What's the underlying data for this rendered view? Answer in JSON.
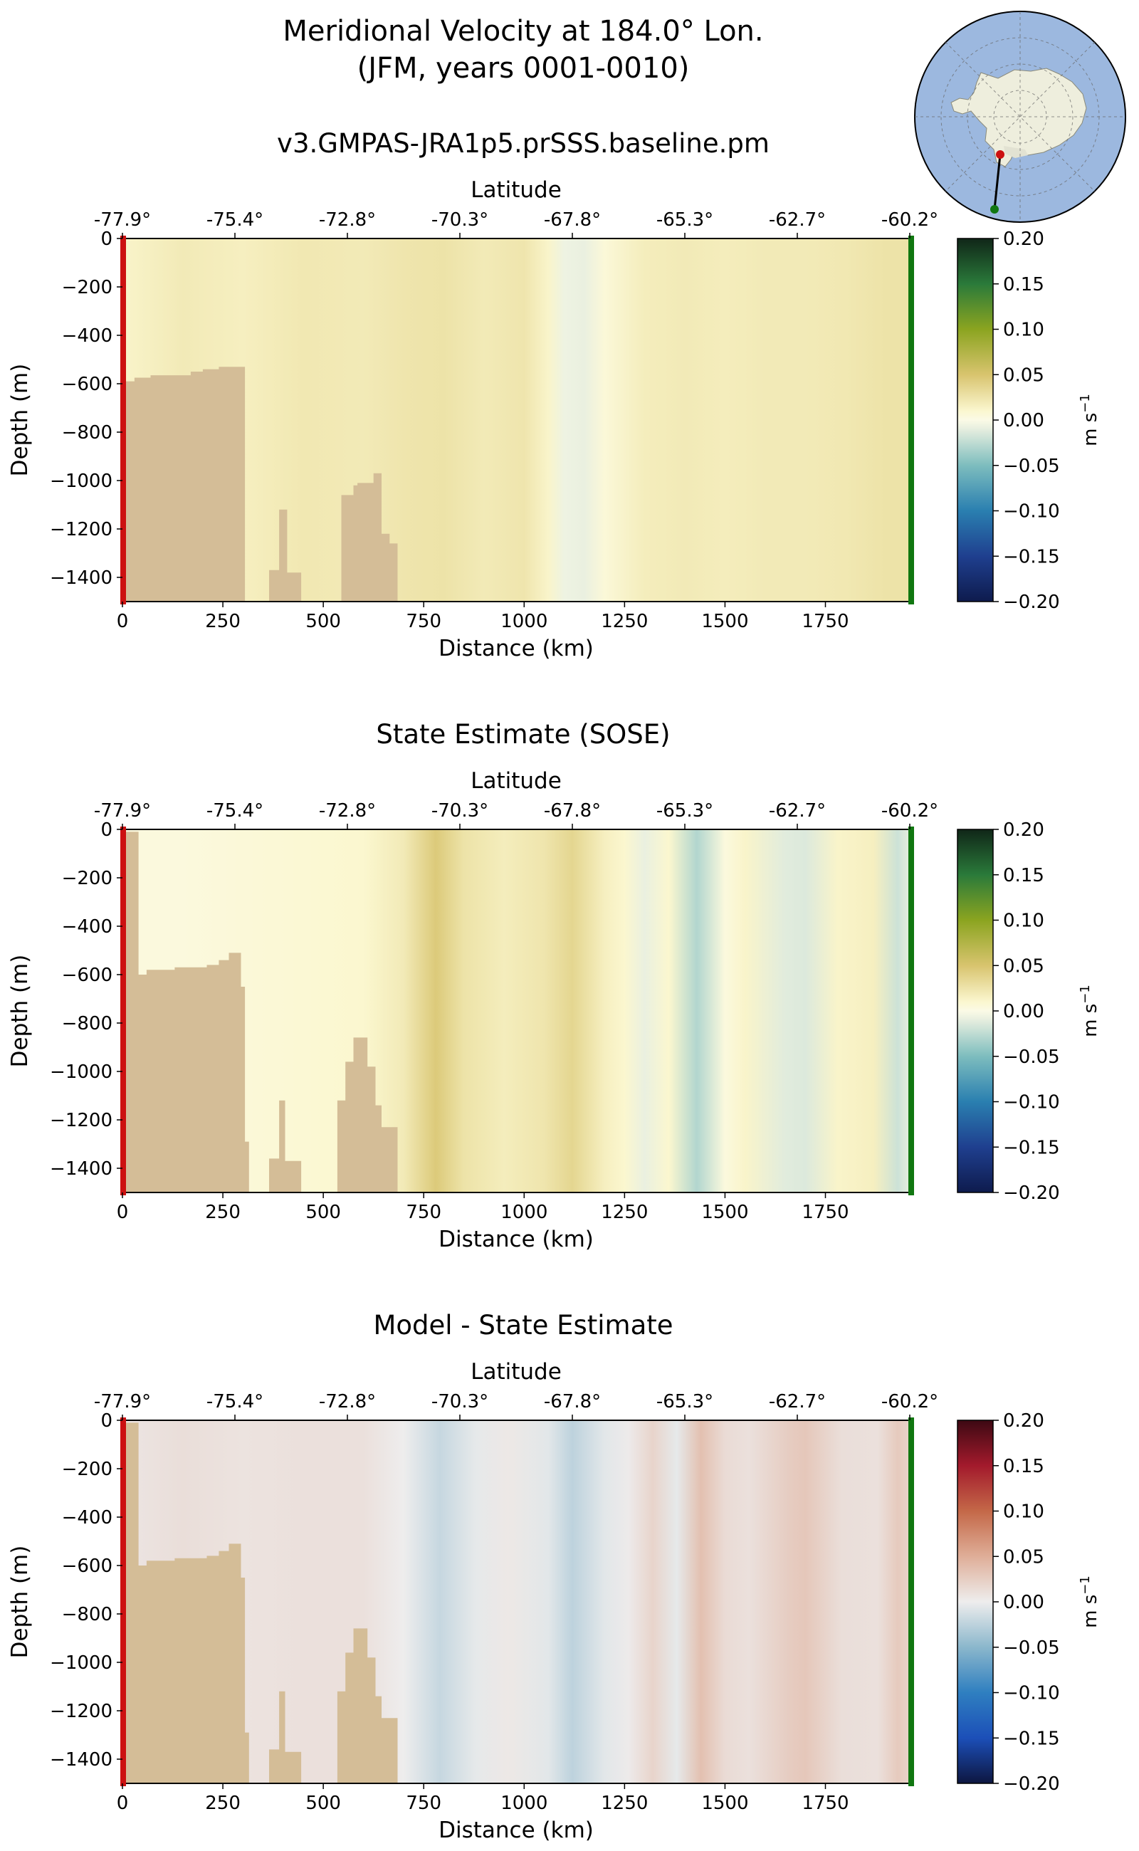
{
  "figure": {
    "title_line1": "Meridional Velocity at 184.0° Lon.",
    "title_line2": "(JFM, years 0001-0010)",
    "units_label": "m s",
    "units_exponent": "−1",
    "colors": {
      "land": "#d4bd97",
      "start_marker": "#cc1111",
      "end_marker": "#117711",
      "ocean": "#9cb8df",
      "ice": "#eeeedd"
    }
  },
  "chart_data": [
    {
      "type": "heatmap",
      "title": "v3.GMPAS-JRA1p5.prSSS.baseline.pm",
      "xlabel": "Distance (km)",
      "ylabel": "Depth (m)",
      "top_xlabel": "Latitude",
      "xlim": [
        0,
        1960
      ],
      "ylim": [
        -1500,
        0
      ],
      "xticks": [
        0,
        250,
        500,
        750,
        1000,
        1250,
        1500,
        1750
      ],
      "yticks": [
        0,
        -200,
        -400,
        -600,
        -800,
        -1000,
        -1200,
        -1400
      ],
      "ytick_labels": [
        "0",
        "−200",
        "−400",
        "−600",
        "−800",
        "−1000",
        "−1200",
        "−1400"
      ],
      "lat_ticks": [
        "-77.9°",
        "-75.4°",
        "-72.8°",
        "-70.3°",
        "-67.8°",
        "-65.3°",
        "-62.7°",
        "-60.2°"
      ],
      "colormap": "green-yellow-blue diverging",
      "clim": [
        -0.2,
        0.2
      ],
      "colorbar_ticks": [
        0.2,
        0.15,
        0.1,
        0.05,
        0.0,
        -0.05,
        -0.1,
        -0.15,
        -0.2
      ],
      "colorbar_labels": [
        "0.20",
        "0.15",
        "0.10",
        "0.05",
        "0.00",
        "−0.05",
        "−0.10",
        "−0.15",
        "−0.20"
      ],
      "column_values": [
        {
          "x": 0,
          "v": 0.012
        },
        {
          "x": 150,
          "v": 0.02
        },
        {
          "x": 300,
          "v": 0.016
        },
        {
          "x": 450,
          "v": 0.022
        },
        {
          "x": 600,
          "v": 0.02
        },
        {
          "x": 700,
          "v": 0.024
        },
        {
          "x": 800,
          "v": 0.026
        },
        {
          "x": 900,
          "v": 0.02
        },
        {
          "x": 1000,
          "v": 0.024
        },
        {
          "x": 1060,
          "v": 0.012
        },
        {
          "x": 1100,
          "v": -0.006
        },
        {
          "x": 1150,
          "v": -0.008
        },
        {
          "x": 1200,
          "v": 0.006
        },
        {
          "x": 1300,
          "v": 0.018
        },
        {
          "x": 1400,
          "v": 0.02
        },
        {
          "x": 1500,
          "v": 0.018
        },
        {
          "x": 1600,
          "v": 0.02
        },
        {
          "x": 1700,
          "v": 0.02
        },
        {
          "x": 1800,
          "v": 0.022
        },
        {
          "x": 1900,
          "v": 0.026
        },
        {
          "x": 1960,
          "v": 0.026
        }
      ],
      "bathymetry": [
        [
          0,
          -590
        ],
        [
          30,
          -590
        ],
        [
          30,
          -575
        ],
        [
          70,
          -575
        ],
        [
          70,
          -565
        ],
        [
          170,
          -565
        ],
        [
          170,
          -550
        ],
        [
          200,
          -550
        ],
        [
          200,
          -540
        ],
        [
          240,
          -540
        ],
        [
          240,
          -530
        ],
        [
          305,
          -530
        ],
        [
          305,
          -1500
        ],
        [
          365,
          -1500
        ],
        [
          365,
          -1370
        ],
        [
          390,
          -1370
        ],
        [
          390,
          -1120
        ],
        [
          410,
          -1120
        ],
        [
          410,
          -1380
        ],
        [
          445,
          -1380
        ],
        [
          445,
          -1500
        ],
        [
          545,
          -1500
        ],
        [
          545,
          -1060
        ],
        [
          575,
          -1060
        ],
        [
          575,
          -1020
        ],
        [
          585,
          -1020
        ],
        [
          585,
          -1010
        ],
        [
          625,
          -1010
        ],
        [
          625,
          -970
        ],
        [
          645,
          -970
        ],
        [
          645,
          -1220
        ],
        [
          665,
          -1220
        ],
        [
          665,
          -1260
        ],
        [
          685,
          -1260
        ],
        [
          685,
          -1500
        ]
      ]
    },
    {
      "type": "heatmap",
      "title": "State Estimate (SOSE)",
      "xlabel": "Distance (km)",
      "ylabel": "Depth (m)",
      "top_xlabel": "Latitude",
      "xlim": [
        0,
        1960
      ],
      "ylim": [
        -1500,
        0
      ],
      "xticks": [
        0,
        250,
        500,
        750,
        1000,
        1250,
        1500,
        1750
      ],
      "yticks": [
        0,
        -200,
        -400,
        -600,
        -800,
        -1000,
        -1200,
        -1400
      ],
      "ytick_labels": [
        "0",
        "−200",
        "−400",
        "−600",
        "−800",
        "−1000",
        "−1200",
        "−1400"
      ],
      "lat_ticks": [
        "-77.9°",
        "-75.4°",
        "-72.8°",
        "-70.3°",
        "-67.8°",
        "-65.3°",
        "-62.7°",
        "-60.2°"
      ],
      "colormap": "green-yellow-blue diverging",
      "clim": [
        -0.2,
        0.2
      ],
      "colorbar_ticks": [
        0.2,
        0.15,
        0.1,
        0.05,
        0.0,
        -0.05,
        -0.1,
        -0.15,
        -0.2
      ],
      "colorbar_labels": [
        "0.20",
        "0.15",
        "0.10",
        "0.05",
        "0.00",
        "−0.05",
        "−0.10",
        "−0.15",
        "−0.20"
      ],
      "column_values": [
        {
          "x": 0,
          "v": 0.004
        },
        {
          "x": 150,
          "v": 0.004
        },
        {
          "x": 300,
          "v": 0.006
        },
        {
          "x": 450,
          "v": 0.008
        },
        {
          "x": 600,
          "v": 0.01
        },
        {
          "x": 700,
          "v": 0.02
        },
        {
          "x": 780,
          "v": 0.045
        },
        {
          "x": 850,
          "v": 0.026
        },
        {
          "x": 950,
          "v": 0.018
        },
        {
          "x": 1050,
          "v": 0.024
        },
        {
          "x": 1120,
          "v": 0.036
        },
        {
          "x": 1200,
          "v": 0.016
        },
        {
          "x": 1250,
          "v": 0.01
        },
        {
          "x": 1300,
          "v": -0.008
        },
        {
          "x": 1360,
          "v": 0.01
        },
        {
          "x": 1430,
          "v": -0.03
        },
        {
          "x": 1500,
          "v": 0.004
        },
        {
          "x": 1550,
          "v": 0.012
        },
        {
          "x": 1650,
          "v": -0.012
        },
        {
          "x": 1700,
          "v": -0.014
        },
        {
          "x": 1780,
          "v": 0.012
        },
        {
          "x": 1870,
          "v": 0.016
        },
        {
          "x": 1930,
          "v": -0.02
        },
        {
          "x": 1960,
          "v": -0.01
        }
      ],
      "bathymetry": [
        [
          0,
          -10
        ],
        [
          40,
          -10
        ],
        [
          40,
          -600
        ],
        [
          60,
          -600
        ],
        [
          60,
          -580
        ],
        [
          130,
          -580
        ],
        [
          130,
          -570
        ],
        [
          210,
          -570
        ],
        [
          210,
          -560
        ],
        [
          240,
          -560
        ],
        [
          240,
          -540
        ],
        [
          265,
          -540
        ],
        [
          265,
          -510
        ],
        [
          295,
          -510
        ],
        [
          295,
          -650
        ],
        [
          305,
          -650
        ],
        [
          305,
          -1290
        ],
        [
          315,
          -1290
        ],
        [
          315,
          -1500
        ],
        [
          365,
          -1500
        ],
        [
          365,
          -1360
        ],
        [
          390,
          -1360
        ],
        [
          390,
          -1120
        ],
        [
          405,
          -1120
        ],
        [
          405,
          -1370
        ],
        [
          445,
          -1370
        ],
        [
          445,
          -1500
        ],
        [
          535,
          -1500
        ],
        [
          535,
          -1120
        ],
        [
          555,
          -1120
        ],
        [
          555,
          -960
        ],
        [
          575,
          -960
        ],
        [
          575,
          -860
        ],
        [
          610,
          -860
        ],
        [
          610,
          -980
        ],
        [
          630,
          -980
        ],
        [
          630,
          -1140
        ],
        [
          645,
          -1140
        ],
        [
          645,
          -1230
        ],
        [
          685,
          -1230
        ],
        [
          685,
          -1500
        ]
      ]
    },
    {
      "type": "heatmap",
      "title": "Model - State Estimate",
      "xlabel": "Distance (km)",
      "ylabel": "Depth (m)",
      "top_xlabel": "Latitude",
      "xlim": [
        0,
        1960
      ],
      "ylim": [
        -1500,
        0
      ],
      "xticks": [
        0,
        250,
        500,
        750,
        1000,
        1250,
        1500,
        1750
      ],
      "yticks": [
        0,
        -200,
        -400,
        -600,
        -800,
        -1000,
        -1200,
        -1400
      ],
      "ytick_labels": [
        "0",
        "−200",
        "−400",
        "−600",
        "−800",
        "−1000",
        "−1200",
        "−1400"
      ],
      "lat_ticks": [
        "-77.9°",
        "-75.4°",
        "-72.8°",
        "-70.3°",
        "-67.8°",
        "-65.3°",
        "-62.7°",
        "-60.2°"
      ],
      "colormap": "red-white-blue diverging",
      "clim": [
        -0.2,
        0.2
      ],
      "colorbar_ticks": [
        0.2,
        0.15,
        0.1,
        0.05,
        0.0,
        -0.05,
        -0.1,
        -0.15,
        -0.2
      ],
      "colorbar_labels": [
        "0.20",
        "0.15",
        "0.10",
        "0.05",
        "0.00",
        "−0.05",
        "−0.10",
        "−0.15",
        "−0.20"
      ],
      "column_values": [
        {
          "x": 0,
          "v": 0.006
        },
        {
          "x": 150,
          "v": 0.012
        },
        {
          "x": 300,
          "v": 0.008
        },
        {
          "x": 450,
          "v": 0.01
        },
        {
          "x": 600,
          "v": 0.01
        },
        {
          "x": 700,
          "v": 0.0
        },
        {
          "x": 790,
          "v": -0.02
        },
        {
          "x": 880,
          "v": -0.004
        },
        {
          "x": 960,
          "v": 0.004
        },
        {
          "x": 1060,
          "v": -0.006
        },
        {
          "x": 1120,
          "v": -0.025
        },
        {
          "x": 1200,
          "v": -0.006
        },
        {
          "x": 1260,
          "v": 0.002
        },
        {
          "x": 1320,
          "v": 0.02
        },
        {
          "x": 1380,
          "v": -0.004
        },
        {
          "x": 1440,
          "v": 0.036
        },
        {
          "x": 1500,
          "v": 0.014
        },
        {
          "x": 1560,
          "v": 0.01
        },
        {
          "x": 1660,
          "v": 0.026
        },
        {
          "x": 1700,
          "v": 0.03
        },
        {
          "x": 1790,
          "v": 0.012
        },
        {
          "x": 1880,
          "v": 0.01
        },
        {
          "x": 1930,
          "v": 0.028
        },
        {
          "x": 1960,
          "v": 0.02
        }
      ],
      "bathymetry": [
        [
          0,
          -10
        ],
        [
          40,
          -10
        ],
        [
          40,
          -600
        ],
        [
          60,
          -600
        ],
        [
          60,
          -580
        ],
        [
          130,
          -580
        ],
        [
          130,
          -570
        ],
        [
          210,
          -570
        ],
        [
          210,
          -560
        ],
        [
          240,
          -560
        ],
        [
          240,
          -540
        ],
        [
          265,
          -540
        ],
        [
          265,
          -510
        ],
        [
          295,
          -510
        ],
        [
          295,
          -650
        ],
        [
          305,
          -650
        ],
        [
          305,
          -1290
        ],
        [
          315,
          -1290
        ],
        [
          315,
          -1500
        ],
        [
          365,
          -1500
        ],
        [
          365,
          -1360
        ],
        [
          390,
          -1360
        ],
        [
          390,
          -1120
        ],
        [
          405,
          -1120
        ],
        [
          405,
          -1370
        ],
        [
          445,
          -1370
        ],
        [
          445,
          -1500
        ],
        [
          535,
          -1500
        ],
        [
          535,
          -1120
        ],
        [
          555,
          -1120
        ],
        [
          555,
          -960
        ],
        [
          575,
          -960
        ],
        [
          575,
          -860
        ],
        [
          610,
          -860
        ],
        [
          610,
          -980
        ],
        [
          630,
          -980
        ],
        [
          630,
          -1140
        ],
        [
          645,
          -1140
        ],
        [
          645,
          -1230
        ],
        [
          685,
          -1230
        ],
        [
          685,
          -1500
        ]
      ]
    }
  ]
}
